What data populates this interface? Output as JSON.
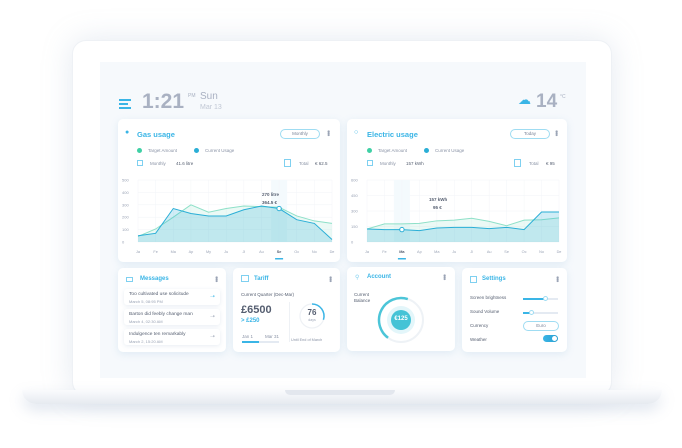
{
  "header": {
    "time": "1:21",
    "ampm": "PM",
    "day": "Sun",
    "date": "Mar 13",
    "temp": "14",
    "temp_unit": "°C",
    "weather_icon": "cloud-snow-icon"
  },
  "gas": {
    "title": "Gas usage",
    "period": "Monthly",
    "legend_target": "Target Amount",
    "legend_current": "Current Usage",
    "monthly_label": "Monthly",
    "monthly_value": "41.6 litre",
    "total_label": "Total",
    "total_value": "€ 62.5",
    "tooltip_line1": "270 litre",
    "tooltip_line2": "364.5 €"
  },
  "electric": {
    "title": "Electric usage",
    "period": "Today",
    "legend_target": "Target Amount",
    "legend_current": "Current Usage",
    "monthly_label": "Monthly",
    "monthly_value": "157 kWh",
    "total_label": "Total",
    "total_value": "€ 95",
    "tooltip_line1": "157 kWh",
    "tooltip_line2": "95 €"
  },
  "chart_data": [
    {
      "type": "area",
      "categories": [
        "Ja",
        "Fe",
        "Ma",
        "Ap",
        "My",
        "Ju",
        "Jl",
        "Au",
        "Se",
        "Oc",
        "No",
        "De"
      ],
      "ylim": [
        0,
        500
      ],
      "yticks": [
        0,
        100,
        200,
        300,
        400,
        500
      ],
      "selected": "Se",
      "series": [
        {
          "name": "Target Amount",
          "color": "#8ee0c8",
          "values": [
            45,
            105,
            200,
            300,
            240,
            270,
            290,
            285,
            280,
            210,
            170,
            150
          ]
        },
        {
          "name": "Current Usage",
          "color": "#2aaed6",
          "values": [
            50,
            70,
            270,
            230,
            210,
            210,
            260,
            290,
            270,
            180,
            150,
            20
          ]
        }
      ]
    },
    {
      "type": "area",
      "categories": [
        "Ja",
        "Fe",
        "Ma",
        "Ap",
        "Ma",
        "Ju",
        "Jl",
        "Au",
        "Se",
        "Oc",
        "No",
        "De"
      ],
      "ylim": [
        0,
        600
      ],
      "yticks": [
        0,
        150,
        300,
        450,
        600
      ],
      "selected": "Ma",
      "series": [
        {
          "name": "Target Amount",
          "color": "#8ee0c8",
          "values": [
            126,
            175,
            175,
            180,
            205,
            212,
            230,
            200,
            158,
            212,
            215,
            234
          ]
        },
        {
          "name": "Current Usage",
          "color": "#2aaed6",
          "values": [
            126,
            120,
            120,
            110,
            136,
            142,
            142,
            129,
            142,
            120,
            290,
            290
          ]
        }
      ]
    }
  ],
  "messages": {
    "title": "Messages",
    "items": [
      {
        "text": "Too cultivated use solicitude",
        "time": "March 5, 08:95 PM"
      },
      {
        "text": "Barton did feebly change man",
        "time": "March 4, 02:30 AM"
      },
      {
        "text": "Indulgence ten remarkably",
        "time": "March 2, 15:20 AM"
      }
    ]
  },
  "tariff": {
    "title": "Tariff",
    "quarter": "Current Quarter (Dec-Mar)",
    "amount": "£6500",
    "change": "> £250",
    "start": "Jan 1",
    "end": "Mar 31",
    "progress": 0.45,
    "days": "76",
    "days_label": "days",
    "until": "Until End of March",
    "days_fraction": 0.3
  },
  "account": {
    "title": "Account",
    "label1": "Current",
    "label2": "Balance",
    "balance": "€125",
    "gauge_fraction": 0.45
  },
  "settings": {
    "title": "Settings",
    "brightness_label": "Screen brightness",
    "brightness": 0.65,
    "volume_label": "Sound Volume",
    "volume": 0.25,
    "currency_label": "Currency",
    "currency": "Euro",
    "weather_label": "Weather",
    "weather_on": true
  }
}
